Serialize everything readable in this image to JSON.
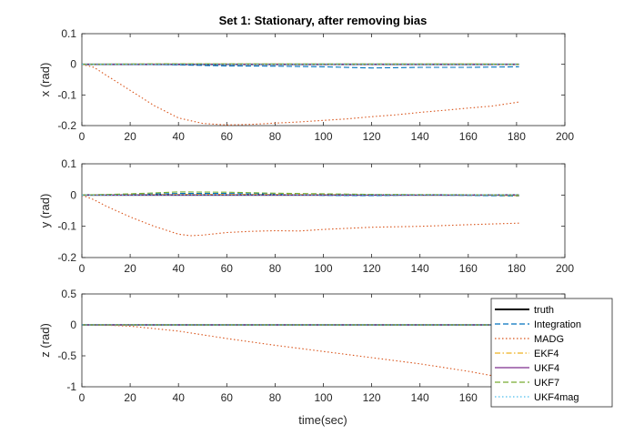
{
  "chart_data": {
    "type": "line",
    "title": "Set 1: Stationary, after removing bias",
    "xlabel": "time(sec)",
    "legend": {
      "placement": "bottom-right",
      "entries": [
        "truth",
        "Integration",
        "MADG",
        "EKF4",
        "UKF4",
        "UKF7",
        "UKF4mag"
      ]
    },
    "series_styles": [
      {
        "name": "truth",
        "color": "#000000",
        "dash": "solid"
      },
      {
        "name": "Integration",
        "color": "#0072BD",
        "dash": "dashed"
      },
      {
        "name": "MADG",
        "color": "#D95319",
        "dash": "dotted"
      },
      {
        "name": "EKF4",
        "color": "#EDB120",
        "dash": "dashdot"
      },
      {
        "name": "UKF4",
        "color": "#7E2F8E",
        "dash": "solid"
      },
      {
        "name": "UKF7",
        "color": "#77AC30",
        "dash": "dashed"
      },
      {
        "name": "UKF4mag",
        "color": "#4DBEEE",
        "dash": "dotted"
      }
    ],
    "subplots": [
      {
        "ylabel": "x (rad)",
        "xlim": [
          0,
          200
        ],
        "ylim": [
          -0.2,
          0.1
        ],
        "xticks": [
          "0",
          "20",
          "40",
          "60",
          "80",
          "100",
          "120",
          "140",
          "160",
          "180",
          "200"
        ],
        "yticks": [
          "0.1",
          "0",
          "-0.1",
          "-0.2"
        ],
        "series": [
          {
            "name": "truth",
            "x": [
              0,
              181
            ],
            "y": [
              0,
              0
            ]
          },
          {
            "name": "Integration",
            "x": [
              0,
              20,
              40,
              60,
              80,
              100,
              120,
              140,
              160,
              181
            ],
            "y": [
              0,
              0,
              -0.002,
              -0.005,
              -0.006,
              -0.008,
              -0.012,
              -0.01,
              -0.01,
              -0.008
            ]
          },
          {
            "name": "MADG",
            "x": [
              0,
              5,
              10,
              20,
              30,
              40,
              50,
              60,
              70,
              80,
              90,
              100,
              110,
              120,
              130,
              140,
              150,
              160,
              170,
              181
            ],
            "y": [
              0,
              -0.01,
              -0.035,
              -0.085,
              -0.135,
              -0.175,
              -0.193,
              -0.198,
              -0.196,
              -0.192,
              -0.188,
              -0.183,
              -0.178,
              -0.171,
              -0.165,
              -0.157,
              -0.15,
              -0.143,
              -0.136,
              -0.123
            ]
          },
          {
            "name": "EKF4",
            "x": [
              0,
              40,
              80,
              120,
              160,
              181
            ],
            "y": [
              0,
              0.001,
              0.001,
              0,
              0.001,
              0
            ]
          },
          {
            "name": "UKF4",
            "x": [
              0,
              181
            ],
            "y": [
              0,
              0
            ]
          },
          {
            "name": "UKF7",
            "x": [
              0,
              40,
              80,
              120,
              160,
              181
            ],
            "y": [
              0,
              0.002,
              0.001,
              0.001,
              0.001,
              0
            ]
          },
          {
            "name": "UKF4mag",
            "x": [
              0,
              181
            ],
            "y": [
              0,
              0
            ]
          }
        ]
      },
      {
        "ylabel": "y (rad)",
        "xlim": [
          0,
          200
        ],
        "ylim": [
          -0.2,
          0.1
        ],
        "xticks": [
          "0",
          "20",
          "40",
          "60",
          "80",
          "100",
          "120",
          "140",
          "160",
          "180",
          "200"
        ],
        "yticks": [
          "0.1",
          "0",
          "-0.1",
          "-0.2"
        ],
        "series": [
          {
            "name": "truth",
            "x": [
              0,
              181
            ],
            "y": [
              0,
              0
            ]
          },
          {
            "name": "Integration",
            "x": [
              0,
              20,
              40,
              60,
              80,
              100,
              120,
              140,
              160,
              181
            ],
            "y": [
              0,
              0.002,
              0.005,
              0.005,
              0.003,
              -0.001,
              -0.002,
              0,
              -0.001,
              -0.003
            ]
          },
          {
            "name": "MADG",
            "x": [
              0,
              5,
              10,
              20,
              30,
              40,
              45,
              50,
              60,
              70,
              80,
              90,
              100,
              120,
              140,
              160,
              181
            ],
            "y": [
              0,
              -0.015,
              -0.035,
              -0.07,
              -0.1,
              -0.125,
              -0.13,
              -0.128,
              -0.12,
              -0.116,
              -0.114,
              -0.115,
              -0.11,
              -0.103,
              -0.1,
              -0.095,
              -0.09
            ]
          },
          {
            "name": "EKF4",
            "x": [
              0,
              40,
              80,
              120,
              160,
              181
            ],
            "y": [
              0,
              0.002,
              0.002,
              0.001,
              0.001,
              -0.002
            ]
          },
          {
            "name": "UKF4",
            "x": [
              0,
              181
            ],
            "y": [
              0,
              0
            ]
          },
          {
            "name": "UKF7",
            "x": [
              0,
              20,
              40,
              60,
              80,
              120,
              160,
              181
            ],
            "y": [
              0,
              0.004,
              0.01,
              0.009,
              0.006,
              0.002,
              0.001,
              0
            ]
          },
          {
            "name": "UKF4mag",
            "x": [
              0,
              181
            ],
            "y": [
              0,
              0.001
            ]
          }
        ]
      },
      {
        "ylabel": "z (rad)",
        "xlim": [
          0,
          200
        ],
        "ylim": [
          -1,
          0.5
        ],
        "xticks": [
          "0",
          "20",
          "40",
          "60",
          "80",
          "100",
          "120",
          "140",
          "160",
          "180",
          "200"
        ],
        "yticks": [
          "0.5",
          "0",
          "-0.5",
          "-1"
        ],
        "series": [
          {
            "name": "truth",
            "x": [
              0,
              181
            ],
            "y": [
              0,
              0
            ]
          },
          {
            "name": "Integration",
            "x": [
              0,
              181
            ],
            "y": [
              0,
              0
            ]
          },
          {
            "name": "MADG",
            "x": [
              0,
              10,
              20,
              30,
              40,
              50,
              60,
              80,
              100,
              120,
              140,
              160,
              181
            ],
            "y": [
              0,
              -0.005,
              -0.02,
              -0.06,
              -0.1,
              -0.16,
              -0.22,
              -0.33,
              -0.43,
              -0.53,
              -0.63,
              -0.75,
              -0.9
            ]
          },
          {
            "name": "EKF4",
            "x": [
              0,
              181
            ],
            "y": [
              0,
              0
            ]
          },
          {
            "name": "UKF4",
            "x": [
              0,
              181
            ],
            "y": [
              0,
              0
            ]
          },
          {
            "name": "UKF7",
            "x": [
              0,
              181
            ],
            "y": [
              0,
              0
            ]
          },
          {
            "name": "UKF4mag",
            "x": [
              0,
              181
            ],
            "y": [
              0,
              0
            ]
          }
        ]
      }
    ]
  }
}
